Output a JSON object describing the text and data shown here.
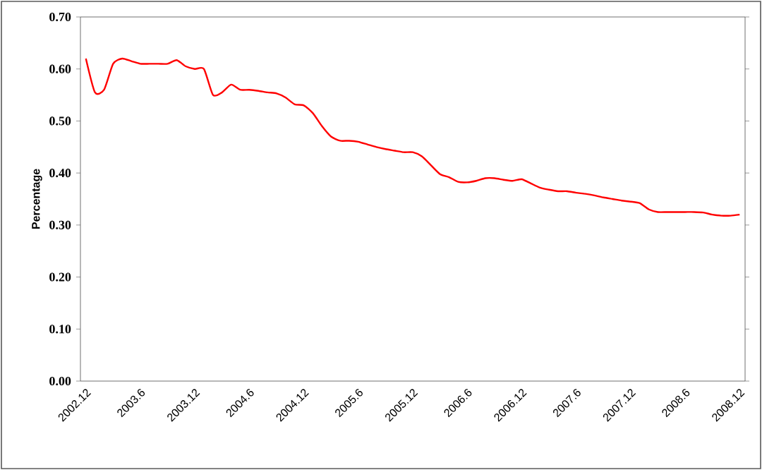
{
  "chart_data": {
    "type": "line",
    "ylabel": "Percentage",
    "categories": [
      "2002.12",
      null,
      null,
      null,
      null,
      null,
      "2003.6",
      null,
      null,
      null,
      null,
      null,
      "2003.12",
      null,
      null,
      null,
      null,
      null,
      "2004.6",
      null,
      null,
      null,
      null,
      null,
      "2004.12",
      null,
      null,
      null,
      null,
      null,
      "2005.6",
      null,
      null,
      null,
      null,
      null,
      "2005.12",
      null,
      null,
      null,
      null,
      null,
      "2006.6",
      null,
      null,
      null,
      null,
      null,
      "2006.12",
      null,
      null,
      null,
      null,
      null,
      "2007.6",
      null,
      null,
      null,
      null,
      null,
      "2007.12",
      null,
      null,
      null,
      null,
      null,
      "2008.6",
      null,
      null,
      null,
      null,
      null,
      "2008.12"
    ],
    "values": [
      0.62,
      0.555,
      0.56,
      0.61,
      0.62,
      0.615,
      0.61,
      0.61,
      0.61,
      0.61,
      0.617,
      0.605,
      0.6,
      0.6,
      0.55,
      0.555,
      0.57,
      0.56,
      0.56,
      0.558,
      0.555,
      0.553,
      0.545,
      0.532,
      0.53,
      0.515,
      0.49,
      0.47,
      0.462,
      0.462,
      0.46,
      0.455,
      0.45,
      0.446,
      0.443,
      0.44,
      0.44,
      0.432,
      0.415,
      0.398,
      0.392,
      0.383,
      0.382,
      0.385,
      0.39,
      0.39,
      0.387,
      0.385,
      0.388,
      0.38,
      0.372,
      0.368,
      0.365,
      0.365,
      0.362,
      0.36,
      0.357,
      0.353,
      0.35,
      0.347,
      0.345,
      0.342,
      0.33,
      0.325,
      0.325,
      0.325,
      0.325,
      0.325,
      0.324,
      0.32,
      0.318,
      0.318,
      0.32
    ],
    "color": "#ff0000",
    "ylim": [
      0,
      0.7
    ],
    "yticks": [
      {
        "value": 0,
        "label": "0.00"
      },
      {
        "value": 0.1,
        "label": "0.10"
      },
      {
        "value": 0.2,
        "label": "0.20"
      },
      {
        "value": 0.3,
        "label": "0.30"
      },
      {
        "value": 0.4,
        "label": "0.40"
      },
      {
        "value": 0.5,
        "label": "0.50"
      },
      {
        "value": 0.6,
        "label": "0.60"
      },
      {
        "value": 0.7,
        "label": "0.70"
      }
    ],
    "grid": false,
    "marker": "none",
    "line_style": "solid"
  }
}
